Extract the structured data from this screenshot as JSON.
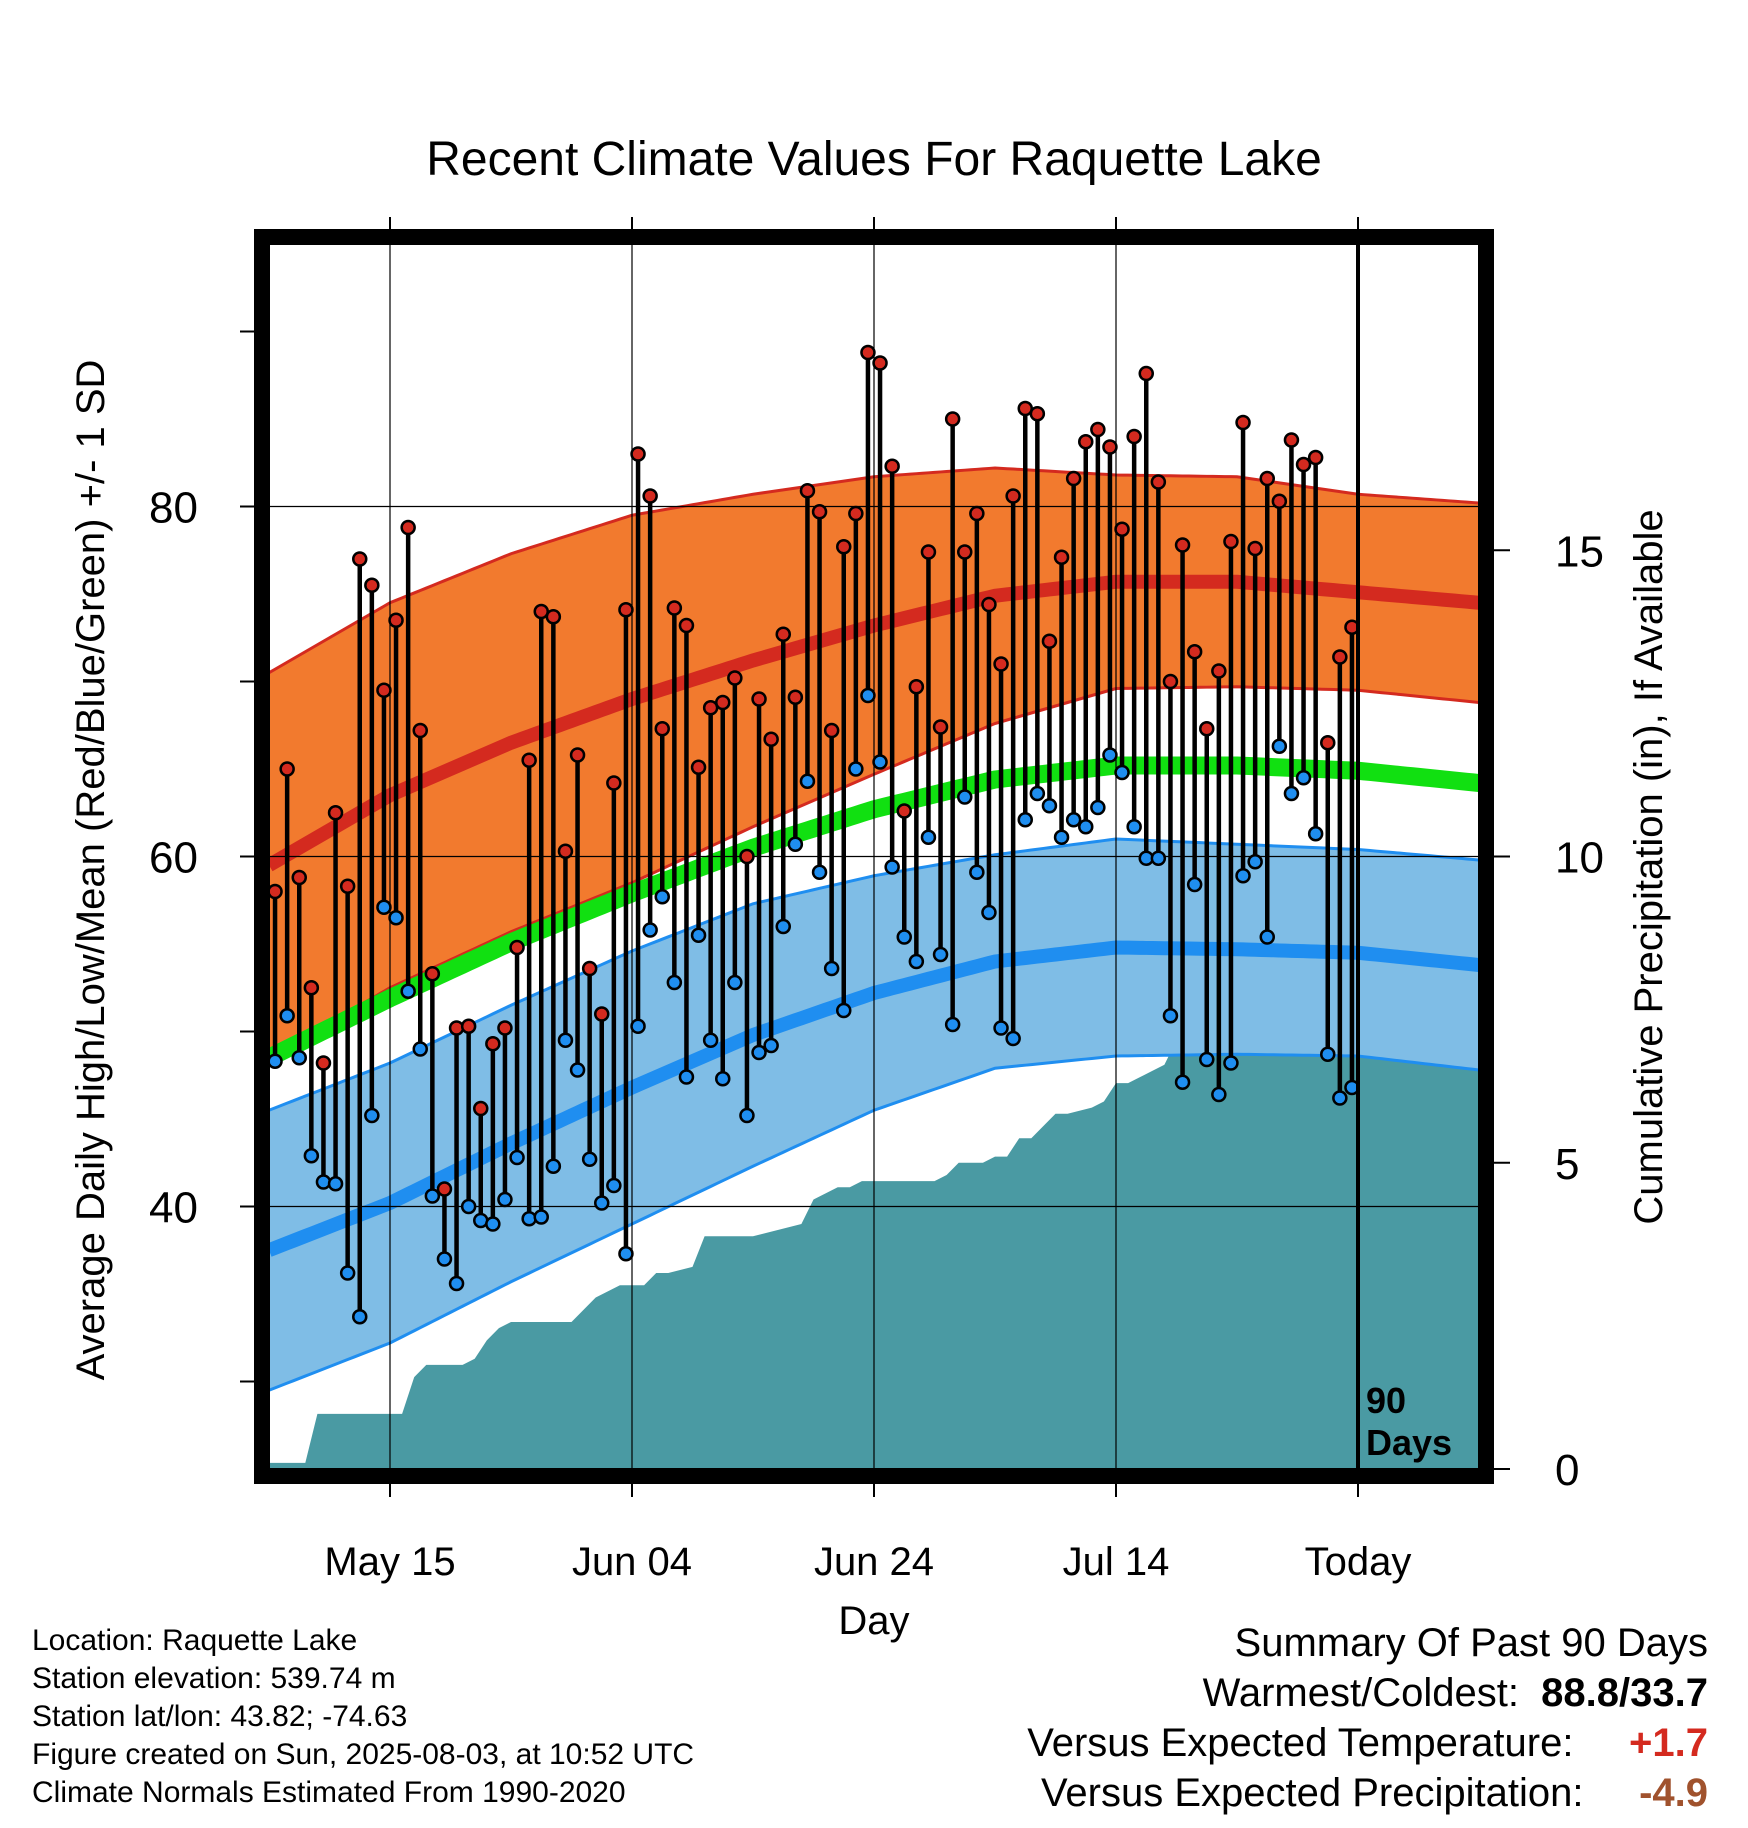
{
  "chart_data": {
    "type": "line",
    "title": "Recent Climate Values For Raquette Lake",
    "xlabel": "Day",
    "ylabel": "Average Daily High/Low/Mean (Red/Blue/Green) +/- 1 SD",
    "y2label": "Cumulative Precipitation (in), If Available",
    "xlim_days": [
      0,
      100
    ],
    "ylim": [
      25,
      95
    ],
    "y2lim": [
      0,
      20
    ],
    "x_ticks": [
      {
        "day": 10,
        "label": "May 15"
      },
      {
        "day": 30,
        "label": "Jun 04"
      },
      {
        "day": 50,
        "label": "Jun 24"
      },
      {
        "day": 70,
        "label": "Jul 14"
      },
      {
        "day": 90,
        "label": "Today"
      }
    ],
    "y_ticks": [
      40,
      60,
      80
    ],
    "y2_ticks": [
      0,
      5,
      10,
      15
    ],
    "today_day": 90,
    "today_label": [
      "90",
      "Days"
    ],
    "grid": true,
    "colors": {
      "high_band": "#f27a2e",
      "high_line": "#d42a1f",
      "low_band": "#7fbde6",
      "low_line": "#1f8ef0",
      "mean_line": "#11e011",
      "precip": "#4a9aa3",
      "high_dot": "#d42a1f",
      "low_dot": "#1f8ef0"
    },
    "normal_high": {
      "days": [
        0,
        10,
        20,
        30,
        40,
        50,
        60,
        70,
        80,
        90,
        100
      ],
      "mean": [
        59.5,
        63.5,
        66.5,
        69,
        71.2,
        73.2,
        74.9,
        75.7,
        75.7,
        75.1,
        74.5
      ],
      "sd": [
        11,
        11,
        10.8,
        10.5,
        9.5,
        8.5,
        7.3,
        6.1,
        6,
        5.6,
        5.7
      ]
    },
    "normal_low": {
      "days": [
        0,
        10,
        20,
        30,
        40,
        50,
        60,
        70,
        80,
        90,
        100
      ],
      "mean": [
        37.5,
        40.2,
        43.6,
        46.8,
        49.8,
        52.2,
        54,
        54.8,
        54.7,
        54.5,
        53.8
      ],
      "sd": [
        8,
        8,
        7.9,
        7.8,
        7.5,
        6.7,
        6.1,
        6.2,
        6,
        5.9,
        6
      ]
    },
    "normal_mean": {
      "days": [
        0,
        10,
        20,
        30,
        40,
        50,
        60,
        70,
        80,
        90,
        100
      ],
      "values": [
        48.5,
        51.9,
        55.1,
        57.9,
        60.5,
        62.7,
        64.4,
        65.2,
        65.2,
        64.9,
        64.2
      ]
    },
    "daily": {
      "start_day": 0,
      "high": [
        58,
        65,
        58.8,
        52.5,
        48.2,
        62.5,
        58.3,
        77,
        75.5,
        69.5,
        73.5,
        78.8,
        67.2,
        53.3,
        41,
        50.2,
        50.3,
        45.6,
        49.3,
        50.2,
        54.8,
        65.5,
        74,
        73.7,
        60.3,
        65.8,
        53.6,
        51,
        64.2,
        74.1,
        83,
        80.6,
        67.3,
        74.2,
        73.2,
        65.1,
        68.5,
        68.8,
        70.2,
        60,
        69,
        66.7,
        72.7,
        69.1,
        80.9,
        79.7,
        67.2,
        77.7,
        79.6,
        88.8,
        88.2,
        82.3,
        62.6,
        69.7,
        77.4,
        67.4,
        85,
        77.4,
        79.6,
        74.4,
        71,
        80.6,
        85.6,
        85.3,
        72.3,
        77.1,
        81.6,
        83.7,
        84.4,
        83.4,
        78.7,
        84,
        87.6,
        81.4,
        70,
        77.8,
        71.7,
        67.3,
        70.6,
        78,
        84.8,
        77.6,
        81.6,
        80.3,
        83.8,
        82.4,
        82.8,
        66.5,
        71.4,
        73.1
      ],
      "low": [
        48.3,
        50.9,
        48.5,
        42.9,
        41.4,
        41.3,
        36.2,
        33.7,
        45.2,
        57.1,
        56.5,
        52.3,
        49,
        40.6,
        37,
        35.6,
        40,
        39.2,
        39,
        40.4,
        42.8,
        39.3,
        39.4,
        42.3,
        49.5,
        47.8,
        42.7,
        40.2,
        41.2,
        37.3,
        50.3,
        55.8,
        57.7,
        52.8,
        47.4,
        55.5,
        49.5,
        47.3,
        52.8,
        45.2,
        48.8,
        49.2,
        56,
        60.7,
        64.3,
        59.1,
        53.6,
        51.2,
        65,
        69.2,
        65.4,
        59.4,
        55.4,
        54,
        61.1,
        54.4,
        50.4,
        63.4,
        59.1,
        56.8,
        50.2,
        49.6,
        62.1,
        63.6,
        62.9,
        61.1,
        62.1,
        61.7,
        62.8,
        65.8,
        64.8,
        61.7,
        59.9,
        59.9,
        50.9,
        47.1,
        58.4,
        48.4,
        46.4,
        48.2,
        58.9,
        59.7,
        55.4,
        66.3,
        63.6,
        64.5,
        61.3,
        48.7,
        46.2,
        46.8
      ]
    },
    "precip": {
      "days": [
        0,
        3,
        4,
        11,
        12,
        13,
        16,
        17,
        18,
        19,
        20,
        24,
        25,
        26,
        27,
        28,
        29,
        30,
        31,
        32,
        33,
        35,
        36,
        37,
        38,
        40,
        44,
        45,
        46,
        47,
        48,
        49,
        51,
        53,
        55,
        56,
        57,
        58,
        59,
        60,
        61,
        62,
        63,
        65,
        66,
        68,
        69,
        70,
        71,
        72,
        73,
        74,
        75,
        76,
        77,
        80,
        81,
        82,
        83,
        85,
        86,
        89,
        90,
        91,
        100
      ],
      "values": [
        0.1,
        0.1,
        0.9,
        0.9,
        1.5,
        1.7,
        1.7,
        1.8,
        2.1,
        2.3,
        2.4,
        2.4,
        2.4,
        2.6,
        2.8,
        2.9,
        3,
        3,
        3,
        3.2,
        3.2,
        3.3,
        3.8,
        3.8,
        3.8,
        3.8,
        4,
        4.4,
        4.5,
        4.6,
        4.6,
        4.7,
        4.7,
        4.7,
        4.7,
        4.8,
        5,
        5,
        5,
        5.1,
        5.1,
        5.4,
        5.4,
        5.8,
        5.8,
        5.9,
        6,
        6.3,
        6.3,
        6.4,
        6.5,
        6.6,
        7,
        7.1,
        7.1,
        7.1,
        7.1,
        7.2,
        7.9,
        7.9,
        8,
        8,
        8,
        8,
        8
      ]
    }
  },
  "info": {
    "location": "Location: Raquette Lake",
    "elevation": "Station elevation: 539.74 m",
    "latlon": "Station lat/lon: 43.82; -74.63",
    "created": "Figure created on Sun, 2025-08-03, at 10:52 UTC",
    "normals": "Climate Normals Estimated From 1990-2020"
  },
  "summary": {
    "heading": "Summary Of Past 90 Days",
    "warmest_coldest_label": "Warmest/Coldest:",
    "warmest_coldest_value": "88.8/33.7",
    "temp_label": "Versus Expected Temperature:",
    "temp_value": "+1.7",
    "temp_color": "#d42a1f",
    "precip_label": "Versus Expected Precipitation:",
    "precip_value": "-4.9",
    "precip_color": "#a0522d"
  }
}
